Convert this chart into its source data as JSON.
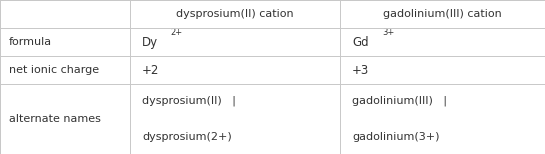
{
  "bg_color": "#ffffff",
  "table_bg": "#ffffff",
  "border_color": "#c8c8c8",
  "text_color": "#333333",
  "col_headers": [
    "dysprosium(II) cation",
    "gadolinium(III) cation"
  ],
  "row_labels": [
    "formula",
    "net ionic charge",
    "alternate names"
  ],
  "col1_formula_main": "Dy",
  "col1_formula_sup": "2+",
  "col2_formula_main": "Gd",
  "col2_formula_sup": "3+",
  "col1_charge": "+2",
  "col2_charge": "+3",
  "col1_alt_line1": "dysprosium(II)   |",
  "col1_alt_line2": "dysprosium(2+)",
  "col2_alt_line1": "gadolinium(III)   |",
  "col2_alt_line2": "gadolinium(3+)",
  "font_size": 8.0,
  "header_font_size": 8.0,
  "sup_font_size": 6.0
}
